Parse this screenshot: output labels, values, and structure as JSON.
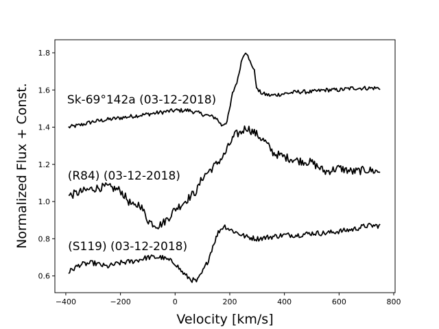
{
  "chart_data": {
    "type": "line",
    "title": "",
    "xlabel": "Velocity [km/s]",
    "ylabel": "Normalized Flux + Const.",
    "xlim": [
      -440,
      805
    ],
    "ylim": [
      0.51,
      1.87
    ],
    "xticks": [
      -400,
      -200,
      0,
      200,
      400,
      600,
      800
    ],
    "xtick_labels": [
      "−400",
      "−200",
      "0",
      "200",
      "400",
      "600",
      "800"
    ],
    "yticks": [
      0.6,
      0.8,
      1.0,
      1.2,
      1.4,
      1.6,
      1.8
    ],
    "ytick_labels": [
      "0.6",
      "0.8",
      "1.0",
      "1.2",
      "1.4",
      "1.6",
      "1.8"
    ],
    "grid": false,
    "legend": "none",
    "series": [
      {
        "name": "Sk-69°142a (03-12-2018)",
        "label_anchor": [
          -395,
          1.55
        ],
        "x": [
          -390,
          -350,
          -300,
          -250,
          -200,
          -150,
          -100,
          -50,
          0,
          50,
          100,
          150,
          170,
          190,
          200,
          210,
          220,
          230,
          240,
          250,
          260,
          270,
          280,
          290,
          300,
          320,
          350,
          400,
          450,
          500,
          550,
          600,
          650,
          700,
          750
        ],
        "y": [
          1.4,
          1.41,
          1.43,
          1.44,
          1.45,
          1.46,
          1.47,
          1.48,
          1.49,
          1.49,
          1.47,
          1.45,
          1.41,
          1.43,
          1.5,
          1.58,
          1.62,
          1.66,
          1.74,
          1.79,
          1.81,
          1.76,
          1.74,
          1.7,
          1.6,
          1.58,
          1.57,
          1.58,
          1.59,
          1.59,
          1.6,
          1.6,
          1.61,
          1.61,
          1.61
        ]
      },
      {
        "name": "(R84) (03-12-2018)",
        "label_anchor": [
          -393,
          1.14
        ],
        "x": [
          -390,
          -350,
          -300,
          -250,
          -200,
          -170,
          -150,
          -130,
          -110,
          -100,
          -80,
          -60,
          -40,
          -20,
          0,
          20,
          50,
          80,
          100,
          150,
          180,
          200,
          220,
          240,
          260,
          280,
          300,
          330,
          360,
          400,
          450,
          500,
          550,
          600,
          650,
          700,
          750
        ],
        "y": [
          1.03,
          1.05,
          1.07,
          1.08,
          1.06,
          1.0,
          0.97,
          0.99,
          0.93,
          0.9,
          0.88,
          0.87,
          0.89,
          0.92,
          0.96,
          0.98,
          1.02,
          1.06,
          1.13,
          1.2,
          1.25,
          1.31,
          1.36,
          1.37,
          1.4,
          1.38,
          1.36,
          1.32,
          1.26,
          1.24,
          1.22,
          1.21,
          1.16,
          1.18,
          1.16,
          1.17,
          1.16
        ]
      },
      {
        "name": "(S119) (03-12-2018)",
        "label_anchor": [
          -392,
          0.76
        ],
        "x": [
          -390,
          -350,
          -300,
          -250,
          -200,
          -150,
          -100,
          -50,
          0,
          20,
          40,
          60,
          80,
          100,
          120,
          140,
          160,
          180,
          200,
          230,
          260,
          300,
          350,
          400,
          450,
          500,
          550,
          600,
          650,
          700,
          750
        ],
        "y": [
          0.62,
          0.66,
          0.67,
          0.65,
          0.67,
          0.68,
          0.7,
          0.7,
          0.67,
          0.63,
          0.6,
          0.58,
          0.57,
          0.62,
          0.68,
          0.77,
          0.84,
          0.87,
          0.85,
          0.83,
          0.81,
          0.8,
          0.81,
          0.82,
          0.82,
          0.83,
          0.83,
          0.84,
          0.85,
          0.87,
          0.87
        ]
      }
    ]
  }
}
